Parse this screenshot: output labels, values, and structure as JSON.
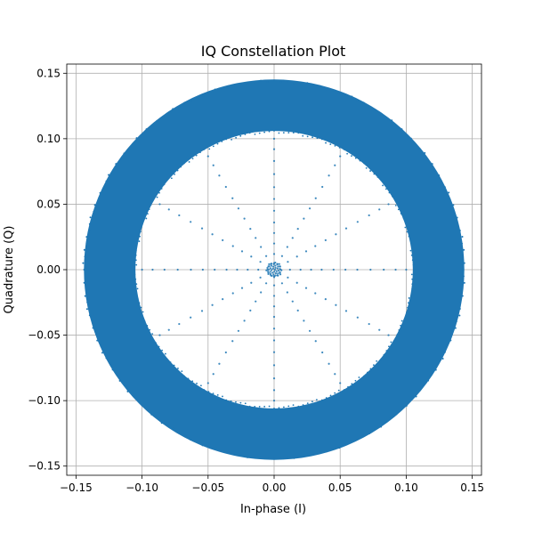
{
  "chart_data": {
    "type": "scatter",
    "title": "IQ Constellation Plot",
    "xlabel": "In-phase (I)",
    "ylabel": "Quadrature (Q)",
    "xlim": [
      -0.157,
      0.157
    ],
    "ylim": [
      -0.157,
      0.157
    ],
    "grid": true,
    "aspect": "equal",
    "x_ticks": [
      -0.15,
      -0.1,
      -0.05,
      0.0,
      0.05,
      0.1,
      0.15
    ],
    "y_ticks": [
      -0.15,
      -0.1,
      -0.05,
      0.0,
      0.05,
      0.1,
      0.15
    ],
    "x_tick_labels": [
      "−0.15",
      "−0.10",
      "−0.05",
      "0.00",
      "0.05",
      "0.10",
      "0.15"
    ],
    "y_tick_labels": [
      "−0.15",
      "−0.10",
      "−0.05",
      "0.00",
      "0.05",
      "0.10",
      "0.15"
    ],
    "point_color": "#1f77b4",
    "series": [
      {
        "kind": "ring",
        "inner_radius": 0.105,
        "outer_radius": 0.144,
        "center": [
          0.0,
          0.0
        ]
      },
      {
        "kind": "radial_spokes",
        "spoke_count": 12,
        "angles_deg": [
          0,
          30,
          60,
          90,
          120,
          150,
          180,
          210,
          240,
          270,
          300,
          330
        ],
        "radii": [
          0.005,
          0.012,
          0.02,
          0.028,
          0.036,
          0.045,
          0.054,
          0.063,
          0.073,
          0.083,
          0.092,
          0.1
        ],
        "central_cluster_radius": 0.006
      }
    ]
  }
}
